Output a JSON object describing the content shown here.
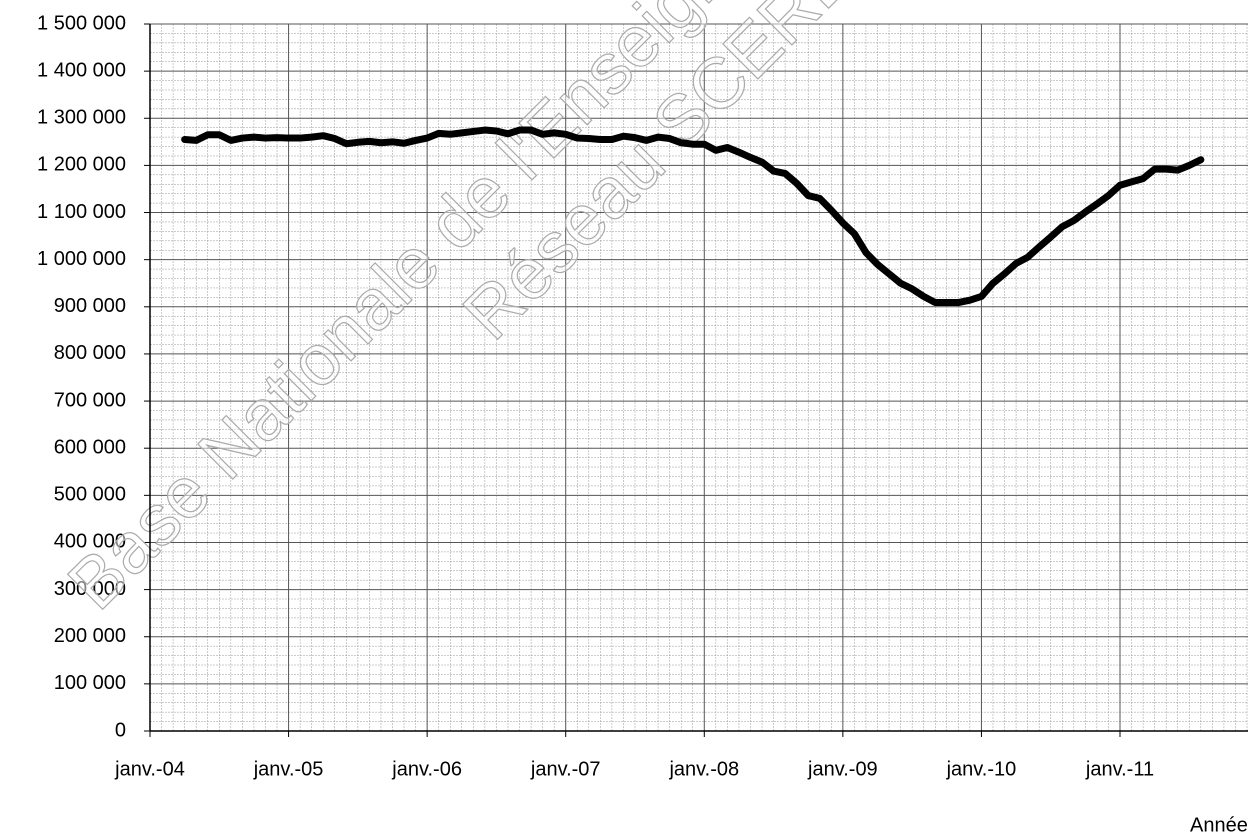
{
  "chart_data": {
    "type": "line",
    "x_label": "Années",
    "watermark": [
      "Base Nationale de l'Enseignement",
      "Réseau SCEREN"
    ],
    "categories": [
      "janv.-04",
      null,
      null,
      null,
      null,
      null,
      null,
      null,
      null,
      null,
      null,
      null,
      "janv.-05",
      null,
      null,
      null,
      null,
      null,
      null,
      null,
      null,
      null,
      null,
      null,
      "janv.-06",
      null,
      null,
      null,
      null,
      null,
      null,
      null,
      null,
      null,
      null,
      null,
      "janv.-07",
      null,
      null,
      null,
      null,
      null,
      null,
      null,
      null,
      null,
      null,
      null,
      "janv.-08",
      null,
      null,
      null,
      null,
      null,
      null,
      null,
      null,
      null,
      null,
      null,
      "janv.-09",
      null,
      null,
      null,
      null,
      null,
      null,
      null,
      null,
      null,
      null,
      null,
      "janv.-10",
      null,
      null,
      null,
      null,
      null,
      null,
      null,
      null,
      null,
      null,
      null,
      "janv.-11",
      null,
      null,
      null,
      null,
      null,
      null,
      null,
      null,
      null,
      null,
      null
    ],
    "series": [
      {
        "color": "#000000",
        "values": [
          null,
          null,
          null,
          1255000,
          1253000,
          1265000,
          1265000,
          1253000,
          1258000,
          1260000,
          1258000,
          1259000,
          1258000,
          1258000,
          1260000,
          1263000,
          1257000,
          1246000,
          1249000,
          1251000,
          1248000,
          1250000,
          1247000,
          1253000,
          1258000,
          1268000,
          1266000,
          1269000,
          1272000,
          1275000,
          1273000,
          1267000,
          1275000,
          1275000,
          1266000,
          1269000,
          1266000,
          1258000,
          1257000,
          1255000,
          1255000,
          1262000,
          1259000,
          1253000,
          1260000,
          1257000,
          1248000,
          1245000,
          1245000,
          1232000,
          1238000,
          1228000,
          1217000,
          1207000,
          1188000,
          1183000,
          1162000,
          1136000,
          1130000,
          1105000,
          1078000,
          1055000,
          1015000,
          990000,
          970000,
          950000,
          938000,
          922000,
          909000,
          909000,
          909000,
          914000,
          922000,
          950000,
          970000,
          992000,
          1005000,
          1027000,
          1048000,
          1070000,
          1083000,
          1101000,
          1118000,
          1136000,
          1158000,
          1165000,
          1172000,
          1192000,
          1192000,
          1190000,
          1200000,
          1212000,
          null,
          null,
          null,
          null
        ]
      }
    ],
    "ylim": [
      0,
      1500000
    ],
    "yticks": [
      0,
      {
        "value": 100000,
        "label": "100 000"
      },
      {
        "value": 200000,
        "label": "200 000"
      },
      {
        "value": 300000,
        "label": "300 000"
      },
      {
        "value": 400000,
        "label": "400 000"
      },
      {
        "value": 500000,
        "label": "500 000"
      },
      {
        "value": 600000,
        "label": "600 000"
      },
      {
        "value": 700000,
        "label": "700 000"
      },
      {
        "value": 800000,
        "label": "800 000"
      },
      {
        "value": 900000,
        "label": "900 000"
      },
      {
        "value": 1000000,
        "label": "1 000 000"
      },
      {
        "value": 1100000,
        "label": "1 100 000"
      },
      {
        "value": 1200000,
        "label": "1 200 000"
      },
      {
        "value": 1300000,
        "label": "1 300 000"
      },
      {
        "value": 1400000,
        "label": "1 400 000"
      },
      {
        "value": 1500000,
        "label": "1 500 000"
      }
    ],
    "grid": true
  }
}
